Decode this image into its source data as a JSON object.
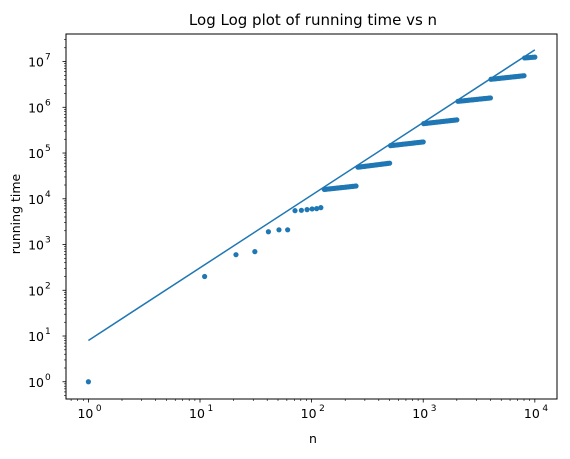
{
  "chart_data": {
    "type": "scatter",
    "title": "Log Log plot of running time vs n",
    "xlabel": "n",
    "ylabel": "running time",
    "xscale": "log",
    "yscale": "log",
    "xlim": [
      0.63,
      15800
    ],
    "ylim": [
      0.42,
      40000000
    ],
    "x_ticks": [
      {
        "value": 1,
        "base": "10",
        "exp": "0"
      },
      {
        "value": 10,
        "base": "10",
        "exp": "1"
      },
      {
        "value": 100,
        "base": "10",
        "exp": "2"
      },
      {
        "value": 1000,
        "base": "10",
        "exp": "3"
      },
      {
        "value": 10000,
        "base": "10",
        "exp": "4"
      }
    ],
    "y_ticks": [
      {
        "value": 1,
        "base": "10",
        "exp": "0"
      },
      {
        "value": 10,
        "base": "10",
        "exp": "1"
      },
      {
        "value": 100,
        "base": "10",
        "exp": "2"
      },
      {
        "value": 1000,
        "base": "10",
        "exp": "3"
      },
      {
        "value": 10000,
        "base": "10",
        "exp": "4"
      },
      {
        "value": 100000,
        "base": "10",
        "exp": "5"
      },
      {
        "value": 1000000,
        "base": "10",
        "exp": "6"
      },
      {
        "value": 10000000,
        "base": "10",
        "exp": "7"
      }
    ],
    "color": "#1f77b4",
    "grid": false,
    "legend": "none",
    "series": [
      {
        "kind": "line",
        "x": [
          1,
          10000
        ],
        "y": [
          8,
          18000000
        ]
      },
      {
        "kind": "points",
        "x": [
          1,
          11,
          21,
          31,
          41,
          51,
          61,
          71,
          81,
          91,
          101,
          111,
          121
        ],
        "y": [
          1,
          200,
          600,
          700,
          1900,
          2100,
          2100,
          5500,
          5600,
          5800,
          6000,
          6100,
          6400
        ]
      },
      {
        "kind": "point-runs",
        "runs": [
          {
            "x_start": 130,
            "x_end": 250,
            "y_start": 16000,
            "y_end": 19000
          },
          {
            "x_start": 260,
            "x_end": 500,
            "y_start": 49000,
            "y_end": 60000
          },
          {
            "x_start": 510,
            "x_end": 1000,
            "y_start": 145000,
            "y_end": 175000
          },
          {
            "x_start": 1010,
            "x_end": 2000,
            "y_start": 440000,
            "y_end": 530000
          },
          {
            "x_start": 2050,
            "x_end": 4000,
            "y_start": 1350000,
            "y_end": 1600000
          },
          {
            "x_start": 4050,
            "x_end": 8000,
            "y_start": 4100000,
            "y_end": 4900000
          },
          {
            "x_start": 8100,
            "x_end": 10000,
            "y_start": 12000000,
            "y_end": 12500000
          }
        ]
      }
    ]
  }
}
